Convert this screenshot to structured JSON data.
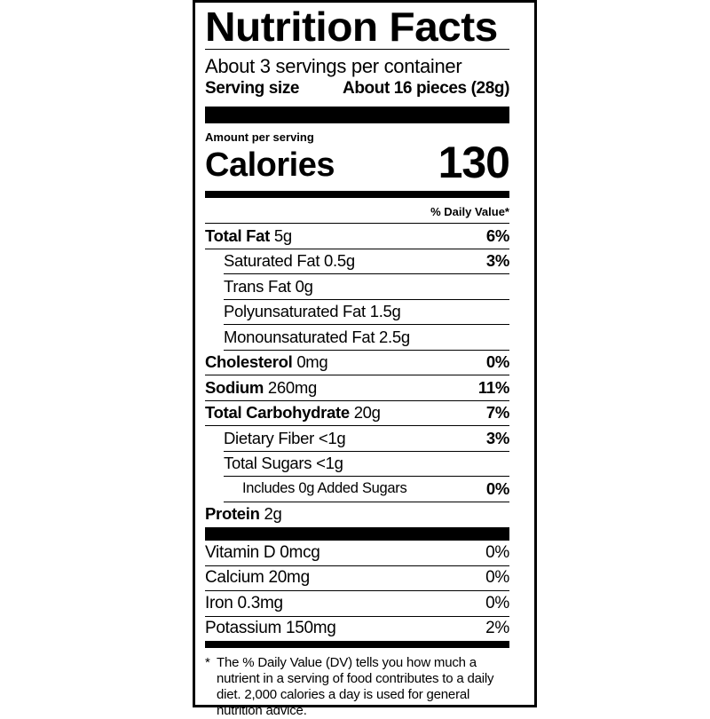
{
  "title": "Nutrition Facts",
  "servings_per_container": "About 3 servings per container",
  "serving_size": {
    "label": "Serving size",
    "value": "About 16 pieces (28g)"
  },
  "amount_per_serving": "Amount per serving",
  "calories": {
    "label": "Calories",
    "value": "130"
  },
  "daily_value_header": "% Daily Value*",
  "nutrients": [
    {
      "name": "Total Fat",
      "amount": "5g",
      "dv": "6%"
    },
    {
      "name": "Saturated Fat",
      "amount": "0.5g",
      "dv": "3%"
    },
    {
      "name": "Trans Fat",
      "amount": "0g",
      "dv": ""
    },
    {
      "name": "Polyunsaturated Fat",
      "amount": "1.5g",
      "dv": ""
    },
    {
      "name": "Monounsaturated Fat",
      "amount": "2.5g",
      "dv": ""
    },
    {
      "name": "Cholesterol",
      "amount": "0mg",
      "dv": "0%"
    },
    {
      "name": "Sodium",
      "amount": "260mg",
      "dv": "11%"
    },
    {
      "name": "Total Carbohydrate",
      "amount": "20g",
      "dv": "7%"
    },
    {
      "name": "Dietary Fiber",
      "amount": "<1g",
      "dv": "3%"
    },
    {
      "name": "Total Sugars",
      "amount": "<1g",
      "dv": ""
    },
    {
      "name": "Includes 0g Added Sugars",
      "amount": "",
      "dv": "0%"
    },
    {
      "name": "Protein",
      "amount": "2g",
      "dv": ""
    }
  ],
  "vitamins": [
    {
      "name": "Vitamin D 0mcg",
      "dv": "0%"
    },
    {
      "name": "Calcium 20mg",
      "dv": "0%"
    },
    {
      "name": "Iron 0.3mg",
      "dv": "0%"
    },
    {
      "name": "Potassium 150mg",
      "dv": "2%"
    }
  ],
  "footnote": {
    "marker": "*",
    "text": "The % Daily Value (DV) tells you how much a nutrient in a serving of food contributes to a daily diet. 2,000 calories a day is used for general nutrition advice."
  }
}
